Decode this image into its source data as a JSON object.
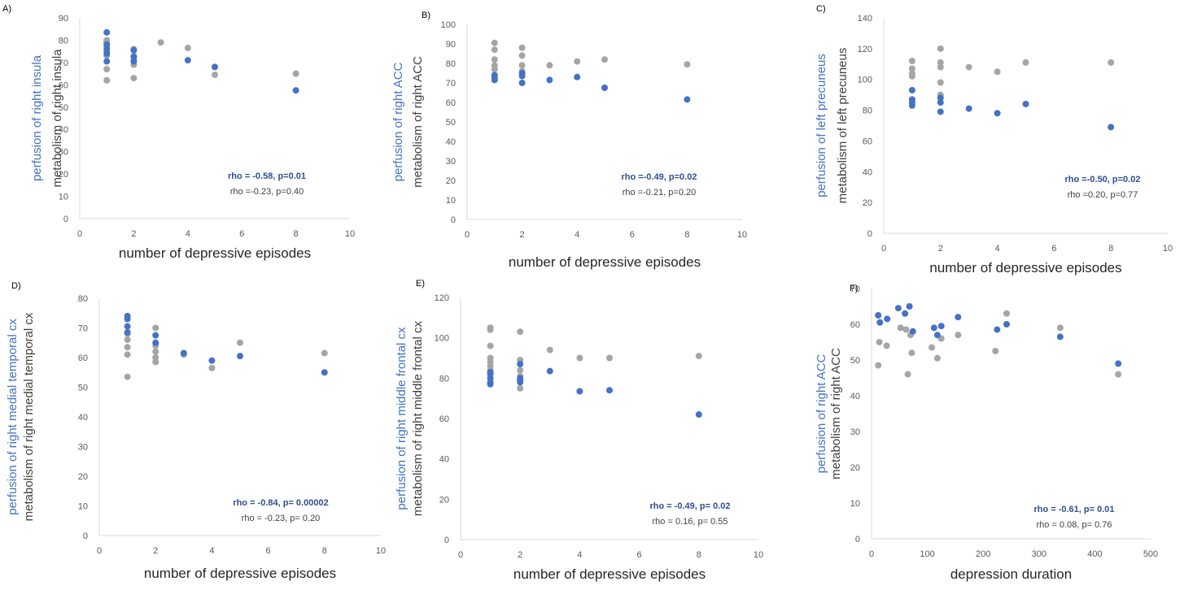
{
  "colors": {
    "blue": "#4472c4",
    "grey": "#a5a5a5",
    "annotation_blue": "#2f4f8f"
  },
  "chart_data": [
    {
      "type": "scatter",
      "panel_label": "A)",
      "xlabel": "number of depressive episodes",
      "ylabel_blue": "perfusion of right insula",
      "ylabel_grey": "metabolism of right insula",
      "xlim": [
        0,
        10
      ],
      "ylim": [
        0,
        90
      ],
      "xstep": 2,
      "ystep": 10,
      "x_ticks": [
        "0",
        "2",
        "4",
        "6",
        "8",
        "10"
      ],
      "y_ticks": [
        "0",
        "10",
        "20",
        "30",
        "40",
        "50",
        "60",
        "70",
        "80",
        "90"
      ],
      "annotation_blue": "rho = -0.58, p=0.01",
      "annotation_grey": "rho =-0.23, p=0.40",
      "series": [
        {
          "color": "grey",
          "points": [
            [
              1,
              80
            ],
            [
              1,
              79
            ],
            [
              1,
              78
            ],
            [
              1,
              77
            ],
            [
              1,
              75
            ],
            [
              1,
              73
            ],
            [
              1,
              67
            ],
            [
              1,
              62
            ],
            [
              2,
              76
            ],
            [
              2,
              73
            ],
            [
              2,
              71
            ],
            [
              2,
              69
            ],
            [
              2,
              63
            ],
            [
              3,
              79
            ],
            [
              4,
              76.5
            ],
            [
              5,
              64.5
            ],
            [
              8,
              65
            ]
          ]
        },
        {
          "color": "blue",
          "points": [
            [
              1,
              83.5
            ],
            [
              1,
              78
            ],
            [
              1,
              76
            ],
            [
              1,
              74
            ],
            [
              1,
              70.5
            ],
            [
              2,
              75.5
            ],
            [
              2,
              72.5
            ],
            [
              2,
              70.5
            ],
            [
              4,
              71
            ],
            [
              5,
              68
            ],
            [
              8,
              57.5
            ]
          ]
        }
      ]
    },
    {
      "type": "scatter",
      "panel_label": "B)",
      "xlabel": "number of depressive episodes",
      "ylabel_blue": "perfusion of right ACC",
      "ylabel_grey": "metabolism of right ACC",
      "xlim": [
        0,
        10
      ],
      "ylim": [
        0,
        100
      ],
      "xstep": 2,
      "ystep": 10,
      "x_ticks": [
        "0",
        "2",
        "4",
        "6",
        "8",
        "10"
      ],
      "y_ticks": [
        "0",
        "10",
        "20",
        "30",
        "40",
        "50",
        "60",
        "70",
        "80",
        "90",
        "100"
      ],
      "annotation_blue": "rho =-0.49, p=0.02",
      "annotation_grey": "rho =-0.21, p=0.20",
      "series": [
        {
          "color": "grey",
          "points": [
            [
              1,
              90.5
            ],
            [
              1,
              87
            ],
            [
              1,
              82
            ],
            [
              1,
              79
            ],
            [
              1,
              77
            ],
            [
              2,
              88
            ],
            [
              2,
              84
            ],
            [
              2,
              79
            ],
            [
              2,
              76
            ],
            [
              3,
              79
            ],
            [
              4,
              81
            ],
            [
              5,
              82
            ],
            [
              8,
              79.5
            ]
          ]
        },
        {
          "color": "blue",
          "points": [
            [
              1,
              74
            ],
            [
              1,
              72.5
            ],
            [
              1,
              71.5
            ],
            [
              2,
              75
            ],
            [
              2,
              73.5
            ],
            [
              2,
              70
            ],
            [
              3,
              71.5
            ],
            [
              4,
              73
            ],
            [
              5,
              67.5
            ],
            [
              8,
              61.5
            ]
          ]
        }
      ]
    },
    {
      "type": "scatter",
      "panel_label": "C)",
      "xlabel": "number of depressive episodes",
      "ylabel_blue": "perfusion of left precuneus",
      "ylabel_grey": "metabolism of  left  precuneus",
      "xlim": [
        0,
        10
      ],
      "ylim": [
        0,
        140
      ],
      "xstep": 2,
      "ystep": 20,
      "x_ticks": [
        "0",
        "2",
        "4",
        "6",
        "8",
        "10"
      ],
      "y_ticks": [
        "0",
        "20",
        "40",
        "60",
        "80",
        "100",
        "120",
        "140"
      ],
      "annotation_blue": "rho =-0.50, p=0.02",
      "annotation_grey": "rho =0.20, p=0.77",
      "series": [
        {
          "color": "grey",
          "points": [
            [
              1,
              112
            ],
            [
              1,
              107
            ],
            [
              1,
              104
            ],
            [
              1,
              102
            ],
            [
              2,
              120
            ],
            [
              2,
              111
            ],
            [
              2,
              108
            ],
            [
              2,
              98
            ],
            [
              2,
              90
            ],
            [
              3,
              108
            ],
            [
              4,
              105
            ],
            [
              5,
              111
            ],
            [
              8,
              111
            ]
          ]
        },
        {
          "color": "blue",
          "points": [
            [
              1,
              93
            ],
            [
              1,
              87
            ],
            [
              1,
              85
            ],
            [
              1,
              83
            ],
            [
              2,
              88
            ],
            [
              2,
              85
            ],
            [
              2,
              79
            ],
            [
              3,
              81
            ],
            [
              4,
              78
            ],
            [
              5,
              84
            ],
            [
              8,
              69
            ]
          ]
        }
      ]
    },
    {
      "type": "scatter",
      "panel_label": "D)",
      "xlabel": "number of depressive episodes",
      "ylabel_blue": "perfusion of right medial temporal  cx",
      "ylabel_grey": "metabolism of right medial temporal  cx",
      "xlim": [
        0,
        10
      ],
      "ylim": [
        0,
        80
      ],
      "xstep": 2,
      "ystep": 10,
      "x_ticks": [
        "0",
        "2",
        "4",
        "6",
        "8",
        "10"
      ],
      "y_ticks": [
        "0",
        "10",
        "20",
        "30",
        "40",
        "50",
        "60",
        "70",
        "80"
      ],
      "annotation_blue": "rho = -0.84, p= 0.00002",
      "annotation_grey": "rho = -0.23, p= 0.20",
      "series": [
        {
          "color": "grey",
          "points": [
            [
              1,
              68
            ],
            [
              1,
              66
            ],
            [
              1,
              63.5
            ],
            [
              1,
              61
            ],
            [
              1,
              53.5
            ],
            [
              2,
              70
            ],
            [
              2,
              64
            ],
            [
              2,
              62
            ],
            [
              2,
              60
            ],
            [
              2,
              58.5
            ],
            [
              3,
              61
            ],
            [
              4,
              56.5
            ],
            [
              5,
              65
            ],
            [
              8,
              61.5
            ]
          ]
        },
        {
          "color": "blue",
          "points": [
            [
              1,
              74
            ],
            [
              1,
              73
            ],
            [
              1,
              70.5
            ],
            [
              1,
              68.5
            ],
            [
              2,
              67.5
            ],
            [
              2,
              65
            ],
            [
              3,
              61.5
            ],
            [
              4,
              59
            ],
            [
              5,
              60.5
            ],
            [
              8,
              55
            ]
          ]
        }
      ]
    },
    {
      "type": "scatter",
      "panel_label": "E)",
      "xlabel": "number of depressive episodes",
      "ylabel_blue": "perfusion of right middle frontal cx",
      "ylabel_grey": "metabolism of right middle  frontal  cx",
      "xlim": [
        0,
        10
      ],
      "ylim": [
        0,
        120
      ],
      "xstep": 2,
      "ystep": 20,
      "x_ticks": [
        "0",
        "2",
        "4",
        "6",
        "8",
        "10"
      ],
      "y_ticks": [
        "0",
        "20",
        "40",
        "60",
        "80",
        "100",
        "120"
      ],
      "annotation_blue": "rho = -0.49, p= 0.02",
      "annotation_grey": "rho = 0.16, p= 0.55",
      "series": [
        {
          "color": "grey",
          "points": [
            [
              1,
              105
            ],
            [
              1,
              104
            ],
            [
              1,
              96
            ],
            [
              1,
              90
            ],
            [
              1,
              88
            ],
            [
              1,
              86
            ],
            [
              1,
              84
            ],
            [
              2,
              103
            ],
            [
              2,
              89
            ],
            [
              2,
              84
            ],
            [
              2,
              81
            ],
            [
              2,
              75
            ],
            [
              3,
              94
            ],
            [
              4,
              90
            ],
            [
              5,
              90
            ],
            [
              8,
              91
            ]
          ]
        },
        {
          "color": "blue",
          "points": [
            [
              1,
              83
            ],
            [
              1,
              82
            ],
            [
              1,
              80
            ],
            [
              1,
              78
            ],
            [
              1,
              77
            ],
            [
              2,
              87
            ],
            [
              2,
              80
            ],
            [
              2,
              79
            ],
            [
              2,
              78
            ],
            [
              3,
              83.5
            ],
            [
              4,
              73.5
            ],
            [
              5,
              74
            ],
            [
              8,
              62
            ]
          ]
        }
      ]
    },
    {
      "type": "scatter",
      "panel_label": "F)",
      "xlabel": "depression duration",
      "ylabel_blue": "perfusion of right ACC",
      "ylabel_grey": "metabolism of right ACC",
      "xlim": [
        0,
        500
      ],
      "ylim": [
        0,
        70
      ],
      "xstep": 100,
      "ystep": 10,
      "x_ticks": [
        "0",
        "100",
        "200",
        "300",
        "400",
        "500"
      ],
      "y_ticks": [
        "0",
        "10",
        "20",
        "30",
        "40",
        "50",
        "60",
        "70"
      ],
      "annotation_blue": "rho = -0.61, p= 0.01",
      "annotation_grey": "rho = 0.08, p= 0.76",
      "series": [
        {
          "color": "grey",
          "points": [
            [
              12,
              48.5
            ],
            [
              14,
              55
            ],
            [
              27,
              54
            ],
            [
              52,
              59
            ],
            [
              62,
              58.5
            ],
            [
              65,
              46
            ],
            [
              70,
              57
            ],
            [
              72,
              52
            ],
            [
              108,
              53.5
            ],
            [
              118,
              50.5
            ],
            [
              125,
              56
            ],
            [
              155,
              57
            ],
            [
              222,
              52.5
            ],
            [
              242,
              63
            ],
            [
              338,
              59
            ],
            [
              442,
              46
            ]
          ]
        },
        {
          "color": "blue",
          "points": [
            [
              12,
              62.5
            ],
            [
              15,
              60.5
            ],
            [
              28,
              61.5
            ],
            [
              48,
              64.5
            ],
            [
              60,
              63
            ],
            [
              68,
              65
            ],
            [
              74,
              58
            ],
            [
              112,
              59
            ],
            [
              118,
              57
            ],
            [
              125,
              59.5
            ],
            [
              155,
              62
            ],
            [
              225,
              58.5
            ],
            [
              242,
              60
            ],
            [
              338,
              56.5
            ],
            [
              442,
              49
            ]
          ]
        }
      ]
    }
  ]
}
